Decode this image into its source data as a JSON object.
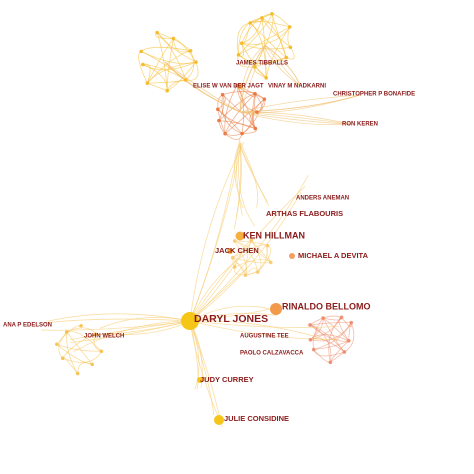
{
  "nodes": [
    {
      "label": "JAMES TIBBALLS"
    },
    {
      "label": "ELISE W VAN DER JAGT"
    },
    {
      "label": "VINAY M NADKARNI"
    },
    {
      "label": "CHRISTOPHER P BONAFIDE"
    },
    {
      "label": "RON KEREN"
    },
    {
      "label": "ANDERS ANEMAN"
    },
    {
      "label": "ARTHAS FLABOURIS"
    },
    {
      "label": "KEN HILLMAN"
    },
    {
      "label": "JACK CHEN"
    },
    {
      "label": "MICHAEL A DEVITA"
    },
    {
      "label": "DARYL JONES"
    },
    {
      "label": "RINALDO BELLOMO"
    },
    {
      "label": "AUGUSTINE TEE"
    },
    {
      "label": "PAOLO CALZAVACCA"
    },
    {
      "label": "ANA P EDELSON"
    },
    {
      "label": "JOHN WELCH"
    },
    {
      "label": "JUDY CURREY"
    },
    {
      "label": "JULIE CONSIDINE"
    }
  ]
}
